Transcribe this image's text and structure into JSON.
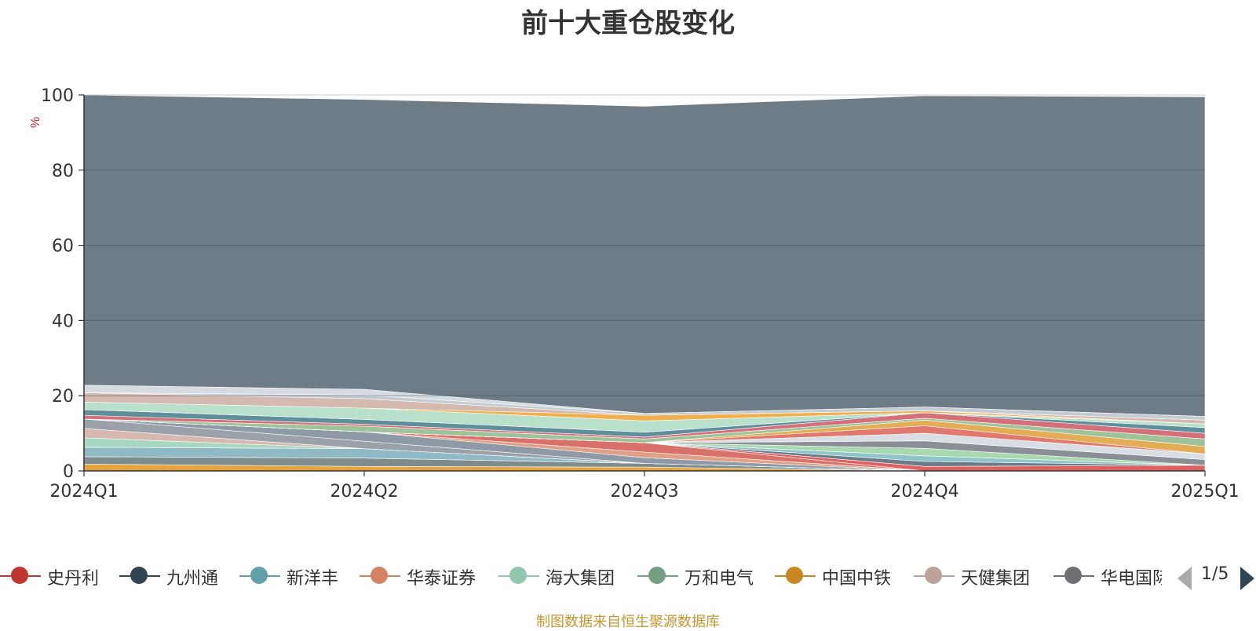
{
  "chart_data": {
    "type": "area",
    "stacked": true,
    "title": "前十大重仓股变化",
    "ylabel": "%",
    "xlabel": "",
    "categories": [
      "2024Q1",
      "2024Q2",
      "2024Q3",
      "2024Q4",
      "2025Q1"
    ],
    "ylim": [
      0,
      100
    ],
    "yticks": [
      "0",
      "20",
      "40",
      "60",
      "80",
      "100"
    ],
    "grid": true,
    "series": [
      {
        "name": "中国中铁",
        "color": "#e8a33a",
        "values": [
          1.8,
          1.2,
          1.0,
          0.0,
          0.0
        ]
      },
      {
        "name": "万和电气",
        "color": "#7f8c8d",
        "values": [
          2.0,
          2.2,
          1.0,
          0.0,
          0.0
        ]
      },
      {
        "name": "新洋丰",
        "color": "#8fb9c4",
        "values": [
          2.5,
          2.5,
          0.0,
          0.0,
          0.0
        ]
      },
      {
        "name": "海大集团",
        "color": "#a7d7c1",
        "values": [
          2.5,
          0.0,
          0.0,
          0.0,
          0.0
        ]
      },
      {
        "name": "天健集团",
        "color": "#d6b8b0",
        "values": [
          2.5,
          0.0,
          0.0,
          0.0,
          0.0
        ]
      },
      {
        "name": "华电国际",
        "color": "#9aa1a8",
        "values": [
          2.5,
          2.0,
          0.0,
          0.0,
          0.0
        ]
      },
      {
        "name": "九州通",
        "color": "#8e9ba6",
        "values": [
          0.0,
          2.5,
          1.5,
          0.0,
          0.0
        ]
      },
      {
        "name": "华泰证券",
        "color": "#e0a088",
        "values": [
          0.0,
          0.0,
          1.5,
          0.0,
          0.0
        ]
      },
      {
        "name": "史丹利",
        "color": "#d9716b",
        "values": [
          0.0,
          0.0,
          2.5,
          0.0,
          0.0
        ]
      },
      {
        "name": "",
        "color": "#e06060",
        "values": [
          0.0,
          0.0,
          0.0,
          1.2,
          1.5
        ]
      },
      {
        "name": "",
        "color": "#6b7b87",
        "values": [
          0.0,
          0.0,
          0.0,
          1.3,
          0.0
        ]
      },
      {
        "name": "",
        "color": "#8fc5c9",
        "values": [
          0.0,
          0.0,
          0.0,
          1.5,
          0.0
        ]
      },
      {
        "name": "",
        "color": "#a8d8b0",
        "values": [
          0.0,
          0.0,
          0.0,
          2.0,
          0.0
        ]
      },
      {
        "name": "",
        "color": "#8a8f96",
        "values": [
          0.0,
          0.0,
          0.0,
          2.0,
          1.5
        ]
      },
      {
        "name": "",
        "color": "#d9dde4",
        "values": [
          0.0,
          0.0,
          0.0,
          2.0,
          1.5
        ]
      },
      {
        "name": "",
        "color": "#e07a6e",
        "values": [
          0.0,
          0.0,
          0.0,
          2.0,
          0.0
        ]
      },
      {
        "name": "",
        "color": "#e3ad55",
        "values": [
          0.0,
          0.0,
          0.0,
          1.5,
          2.0
        ]
      },
      {
        "name": "",
        "color": "#9ec39a",
        "values": [
          0.0,
          1.5,
          1.0,
          0.5,
          2.0
        ]
      },
      {
        "name": "",
        "color": "#d4707a",
        "values": [
          1.0,
          0.5,
          0.5,
          1.5,
          1.5
        ]
      },
      {
        "name": "",
        "color": "#5f8f9b",
        "values": [
          1.5,
          1.3,
          1.3,
          0.0,
          1.5
        ]
      },
      {
        "name": "",
        "color": "#b9e0cb",
        "values": [
          2.0,
          3.0,
          3.0,
          0.0,
          1.0
        ]
      },
      {
        "name": "",
        "color": "#f0b04e",
        "values": [
          0.0,
          0.0,
          1.5,
          0.5,
          0.0
        ]
      },
      {
        "name": "",
        "color": "#d4b9b0",
        "values": [
          2.5,
          2.5,
          0.0,
          0.0,
          1.0
        ]
      },
      {
        "name": "",
        "color": "#c4ccd3",
        "values": [
          0.0,
          1.0,
          0.5,
          1.0,
          1.0
        ]
      },
      {
        "name": "",
        "color": "#d5dbe1",
        "values": [
          2.0,
          1.5,
          0.0,
          0.0,
          0.0
        ]
      },
      {
        "name": "",
        "color": "#6e7c88",
        "values": [
          77.2,
          77.1,
          81.7,
          82.8,
          85.0
        ]
      }
    ]
  },
  "legend": {
    "items": [
      {
        "label": "史丹利",
        "color": "#c23531"
      },
      {
        "label": "九州通",
        "color": "#2f4554"
      },
      {
        "label": "新洋丰",
        "color": "#61a0a8"
      },
      {
        "label": "华泰证券",
        "color": "#d48265"
      },
      {
        "label": "海大集团",
        "color": "#91c7ae"
      },
      {
        "label": "万和电气",
        "color": "#749f83"
      },
      {
        "label": "中国中铁",
        "color": "#ca8622"
      },
      {
        "label": "天健集团",
        "color": "#bda29a"
      },
      {
        "label": "华电国际",
        "color": "#6e7074"
      }
    ],
    "page_indicator": "1/5"
  },
  "source_note": "制图数据来自恒生聚源数据库"
}
